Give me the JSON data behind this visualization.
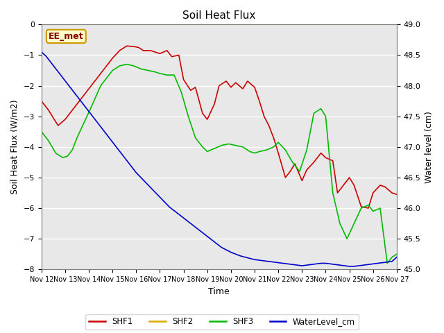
{
  "title": "Soil Heat Flux",
  "xlabel": "Time",
  "ylabel_left": "Soil Heat Flux (W/m2)",
  "ylabel_right": "Water level (cm)",
  "ylim_left": [
    -8.0,
    0.0
  ],
  "ylim_right": [
    45.0,
    49.0
  ],
  "x_tick_labels": [
    "Nov 12",
    "Nov 13",
    "Nov 14",
    "Nov 15",
    "Nov 16",
    "Nov 17",
    "Nov 18",
    "Nov 19",
    "Nov 20",
    "Nov 21",
    "Nov 22",
    "Nov 23",
    "Nov 24",
    "Nov 25",
    "Nov 26",
    "Nov 27"
  ],
  "plot_bg_color": "#e8e8e8",
  "SHF1_color": "#cc0000",
  "SHF2_color": "#ddaa00",
  "SHF3_color": "#00bb00",
  "WL_color": "#0000cc",
  "annotation_label": "EE_met",
  "annotation_bg": "#ffffcc",
  "annotation_border": "#cc9900",
  "annotation_text_color": "#880000",
  "SHF2_value": 0.0,
  "SHF1_x": [
    0,
    0.3,
    0.7,
    1.0,
    1.5,
    2.0,
    2.5,
    3.0,
    3.3,
    3.6,
    3.9,
    4.1,
    4.3,
    4.6,
    5.0,
    5.3,
    5.5,
    5.8,
    6.0,
    6.3,
    6.5,
    6.8,
    7.0,
    7.3,
    7.5,
    7.8,
    8.0,
    8.2,
    8.5,
    8.7,
    9.0,
    9.2,
    9.4,
    9.6,
    9.8,
    10.0,
    10.3,
    10.5,
    10.7,
    11.0,
    11.2,
    11.5,
    11.8,
    12.0,
    12.3,
    12.5,
    12.8,
    13.0,
    13.2,
    13.5,
    13.8,
    14.0,
    14.3,
    14.5,
    14.8,
    15.0
  ],
  "SHF1_y": [
    -2.5,
    -2.8,
    -3.3,
    -3.1,
    -2.6,
    -2.1,
    -1.6,
    -1.1,
    -0.85,
    -0.7,
    -0.72,
    -0.75,
    -0.85,
    -0.85,
    -0.95,
    -0.85,
    -1.05,
    -1.0,
    -1.8,
    -2.15,
    -2.05,
    -2.9,
    -3.1,
    -2.6,
    -2.0,
    -1.85,
    -2.05,
    -1.9,
    -2.1,
    -1.85,
    -2.05,
    -2.5,
    -3.0,
    -3.3,
    -3.7,
    -4.2,
    -5.0,
    -4.8,
    -4.55,
    -5.1,
    -4.75,
    -4.5,
    -4.2,
    -4.35,
    -4.45,
    -5.5,
    -5.2,
    -5.0,
    -5.25,
    -5.95,
    -6.0,
    -5.5,
    -5.25,
    -5.3,
    -5.5,
    -5.55
  ],
  "SHF3_x": [
    0,
    0.3,
    0.6,
    0.9,
    1.1,
    1.3,
    1.5,
    1.8,
    2.1,
    2.5,
    3.0,
    3.3,
    3.6,
    3.9,
    4.2,
    4.5,
    4.8,
    5.0,
    5.3,
    5.6,
    5.9,
    6.2,
    6.5,
    6.8,
    7.0,
    7.3,
    7.6,
    7.9,
    8.2,
    8.5,
    8.8,
    9.0,
    9.2,
    9.5,
    9.8,
    10.0,
    10.3,
    10.6,
    10.9,
    11.2,
    11.5,
    11.8,
    12.0,
    12.3,
    12.6,
    12.9,
    13.2,
    13.5,
    13.8,
    14.0,
    14.3,
    14.6,
    14.8,
    15.0
  ],
  "SHF3_y": [
    -3.5,
    -3.8,
    -4.2,
    -4.35,
    -4.3,
    -4.1,
    -3.7,
    -3.2,
    -2.7,
    -2.0,
    -1.5,
    -1.35,
    -1.3,
    -1.35,
    -1.45,
    -1.5,
    -1.55,
    -1.6,
    -1.65,
    -1.65,
    -2.2,
    -3.0,
    -3.7,
    -4.0,
    -4.15,
    -4.05,
    -3.95,
    -3.9,
    -3.95,
    -4.0,
    -4.15,
    -4.2,
    -4.15,
    -4.1,
    -4.0,
    -3.85,
    -4.1,
    -4.5,
    -4.8,
    -4.1,
    -2.9,
    -2.75,
    -3.0,
    -5.5,
    -6.5,
    -7.0,
    -6.5,
    -6.0,
    -5.9,
    -6.1,
    -6.0,
    -7.8,
    -7.6,
    -7.5
  ],
  "WL_x": [
    0,
    0.2,
    0.4,
    0.6,
    0.8,
    1.0,
    1.2,
    1.4,
    1.6,
    1.8,
    2.0,
    2.2,
    2.4,
    2.6,
    2.8,
    3.0,
    3.2,
    3.4,
    3.6,
    3.8,
    4.0,
    4.2,
    4.4,
    4.6,
    4.8,
    5.0,
    5.2,
    5.4,
    5.6,
    5.8,
    6.0,
    6.2,
    6.4,
    6.6,
    6.8,
    7.0,
    7.2,
    7.4,
    7.6,
    7.8,
    8.0,
    8.2,
    8.4,
    8.6,
    8.8,
    9.0,
    9.2,
    9.4,
    9.6,
    9.8,
    10.0,
    10.2,
    10.4,
    10.6,
    10.8,
    11.0,
    11.2,
    11.4,
    11.6,
    11.8,
    12.0,
    12.2,
    12.4,
    12.6,
    12.8,
    13.0,
    13.2,
    13.4,
    13.6,
    13.8,
    14.0,
    14.2,
    14.4,
    14.6,
    14.8,
    15.0
  ],
  "WL_y": [
    48.55,
    48.48,
    48.38,
    48.28,
    48.18,
    48.08,
    47.98,
    47.88,
    47.78,
    47.68,
    47.58,
    47.48,
    47.38,
    47.28,
    47.18,
    47.08,
    46.98,
    46.88,
    46.78,
    46.68,
    46.58,
    46.5,
    46.42,
    46.34,
    46.26,
    46.18,
    46.1,
    46.02,
    45.96,
    45.9,
    45.84,
    45.78,
    45.72,
    45.66,
    45.6,
    45.54,
    45.48,
    45.42,
    45.36,
    45.32,
    45.28,
    45.25,
    45.22,
    45.2,
    45.18,
    45.16,
    45.15,
    45.14,
    45.13,
    45.12,
    45.11,
    45.1,
    45.09,
    45.08,
    45.07,
    45.06,
    45.07,
    45.08,
    45.09,
    45.1,
    45.1,
    45.09,
    45.08,
    45.07,
    45.06,
    45.05,
    45.05,
    45.06,
    45.07,
    45.08,
    45.09,
    45.1,
    45.11,
    45.12,
    45.13,
    45.2
  ]
}
